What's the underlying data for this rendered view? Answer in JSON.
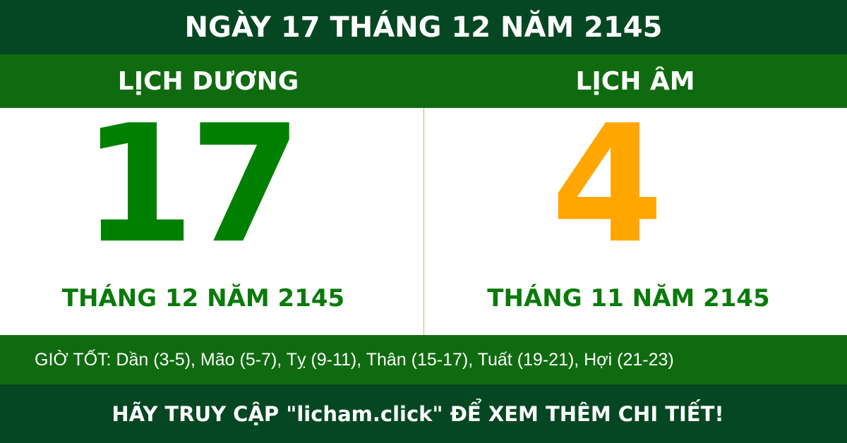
{
  "header": {
    "title": "NGÀY 17 THÁNG 12 NĂM 2145"
  },
  "solar": {
    "label": "LỊCH DƯƠNG",
    "day": "17",
    "month_year": "THÁNG 12 NĂM 2145",
    "color": "#008000"
  },
  "lunar": {
    "label": "LỊCH ÂM",
    "day": "4",
    "month_year": "THÁNG 11 NĂM 2145",
    "color": "#ffa600"
  },
  "good_hours": "GIỜ TỐT: Dần (3-5), Mão (5-7), Tỵ (9-11), Thân (15-17), Tuất (19-21), Hợi (21-23)",
  "footer": {
    "cta": "HÃY TRUY CẬP \"licham.click\" ĐỂ XEM THÊM CHI TIẾT!"
  },
  "colors": {
    "dark_green": "#044722",
    "green": "#106b10"
  }
}
